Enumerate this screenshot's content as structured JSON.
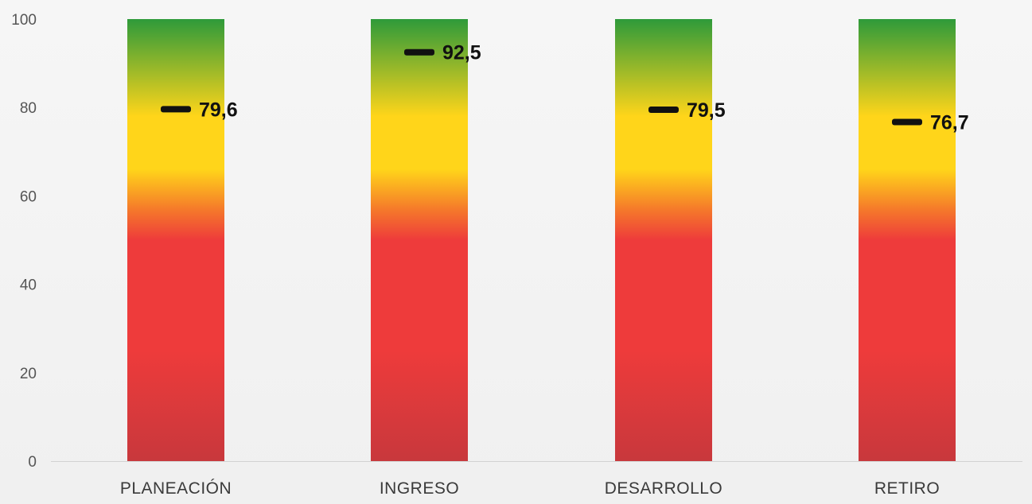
{
  "chart_data": {
    "type": "bar",
    "categories": [
      "PLANEACIÓN",
      "INGRESO",
      "DESARROLLO",
      "RETIRO"
    ],
    "values": [
      79.6,
      92.5,
      79.5,
      76.7
    ],
    "value_labels": [
      "79,6",
      "92,5",
      "79,5",
      "76,7"
    ],
    "y_ticks": [
      "0",
      "20",
      "40",
      "60",
      "80",
      "100"
    ],
    "ylim": [
      0,
      100
    ],
    "title": "",
    "xlabel": "",
    "ylabel": "",
    "grid": false,
    "legend": "none",
    "bar_fill": "gradient red-yellow-green from 0 to 100",
    "colors": {
      "red": "#ee3b3b",
      "dark_red": "#c8383c",
      "orange": "#f57a2a",
      "yellow": "#ffd51a",
      "green": "#2e9a3a",
      "marker": "#111111"
    }
  }
}
